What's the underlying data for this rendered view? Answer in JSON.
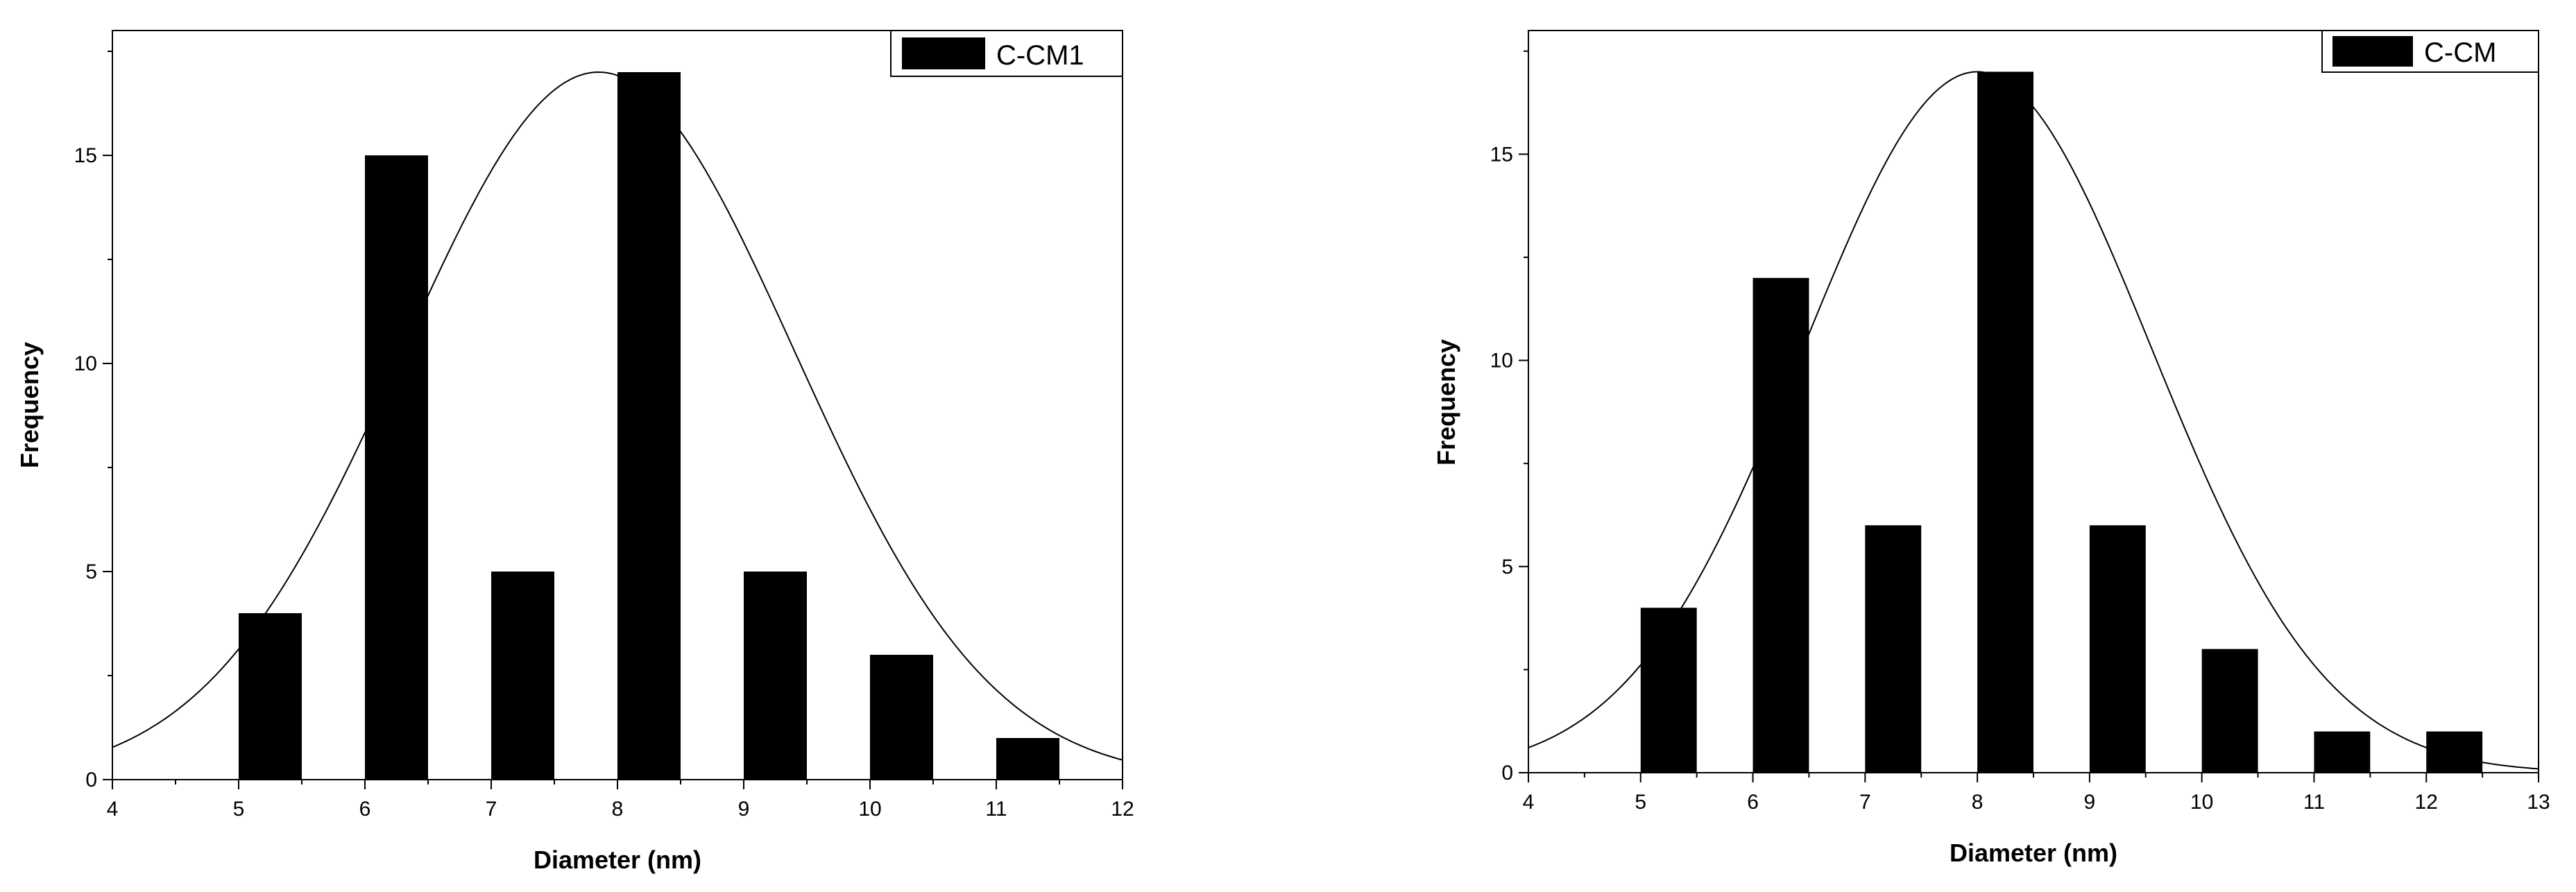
{
  "chart_data": [
    {
      "type": "bar",
      "title": "",
      "xlabel": "Diameter (nm)",
      "ylabel": "Frequency",
      "xlim": [
        4,
        12
      ],
      "ylim": [
        0,
        18
      ],
      "xticks": [
        "4",
        "5",
        "6",
        "7",
        "8",
        "9",
        "10",
        "11",
        "12"
      ],
      "yticks": [
        "0",
        "5",
        "10",
        "15"
      ],
      "bar_width": 0.5,
      "x": [
        5,
        6,
        7,
        8,
        9,
        10,
        11
      ],
      "values": [
        4,
        15,
        5,
        17,
        5,
        3,
        1
      ],
      "legend": {
        "label": "C-CM1",
        "placement": "top-right"
      },
      "fit_curve": {
        "type": "gaussian",
        "mean": 7.85,
        "sd": 1.55,
        "peak": 17
      },
      "grid": false,
      "bar_color": "#000000"
    },
    {
      "type": "bar",
      "title": "",
      "xlabel": "Diameter (nm)",
      "ylabel": "Frequency",
      "xlim": [
        4,
        13
      ],
      "ylim": [
        0,
        18
      ],
      "xticks": [
        "4",
        "5",
        "6",
        "7",
        "8",
        "9",
        "10",
        "11",
        "12",
        "13"
      ],
      "yticks": [
        "0",
        "5",
        "10",
        "15"
      ],
      "bar_width": 0.5,
      "x": [
        5,
        6,
        7,
        8,
        9,
        10,
        11,
        12
      ],
      "values": [
        4,
        12,
        6,
        17,
        6,
        3,
        1,
        1
      ],
      "legend": {
        "label": "C-CM",
        "placement": "top-right"
      },
      "fit_curve": {
        "type": "gaussian",
        "mean": 8.0,
        "sd": 1.55,
        "peak": 17
      },
      "grid": false,
      "bar_color": "#000000"
    }
  ]
}
